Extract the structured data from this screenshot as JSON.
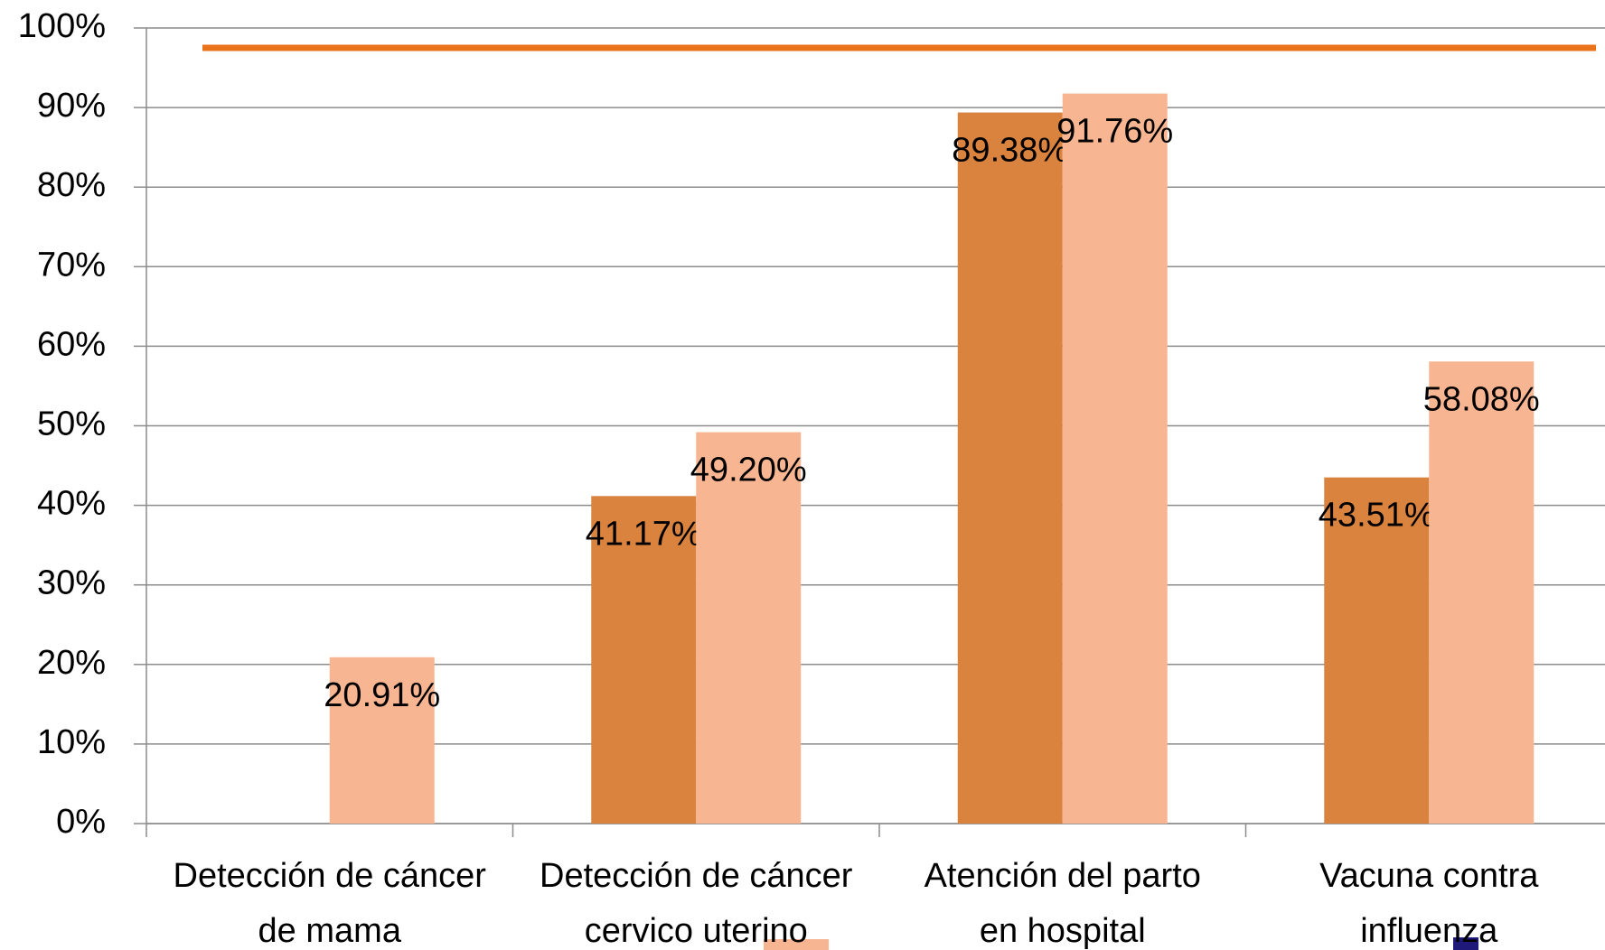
{
  "chart_data": {
    "type": "bar",
    "categories": [
      [
        "Detección de cáncer",
        "de mama"
      ],
      [
        "Detección de cáncer",
        "cervico uterino"
      ],
      [
        "Atención del parto",
        "en hospital"
      ],
      [
        "Vacuna contra",
        "influenza"
      ]
    ],
    "series": [
      {
        "color": "#D9833F",
        "values": [
          null,
          41.17,
          89.38,
          43.51
        ],
        "value_labels": [
          null,
          "41.17%",
          "89.38%",
          "43.51%"
        ]
      },
      {
        "color": "#F8B591",
        "values": [
          20.91,
          49.2,
          91.76,
          58.08
        ],
        "value_labels": [
          "20.91%",
          "49.20%",
          "91.76%",
          "58.08%"
        ]
      }
    ],
    "reference_line": {
      "value": 97.5,
      "color": "#E8731A"
    },
    "ylim": [
      0,
      100
    ],
    "yticks": [
      {
        "value": 0,
        "label": "0%"
      },
      {
        "value": 10,
        "label": "10%"
      },
      {
        "value": 20,
        "label": "20%"
      },
      {
        "value": 30,
        "label": "30%"
      },
      {
        "value": 40,
        "label": "40%"
      },
      {
        "value": 50,
        "label": "50%"
      },
      {
        "value": 60,
        "label": "60%"
      },
      {
        "value": 70,
        "label": "70%"
      },
      {
        "value": 80,
        "label": "80%"
      },
      {
        "value": 90,
        "label": "90%"
      },
      {
        "value": 100,
        "label": "100%"
      }
    ],
    "grid": true
  }
}
